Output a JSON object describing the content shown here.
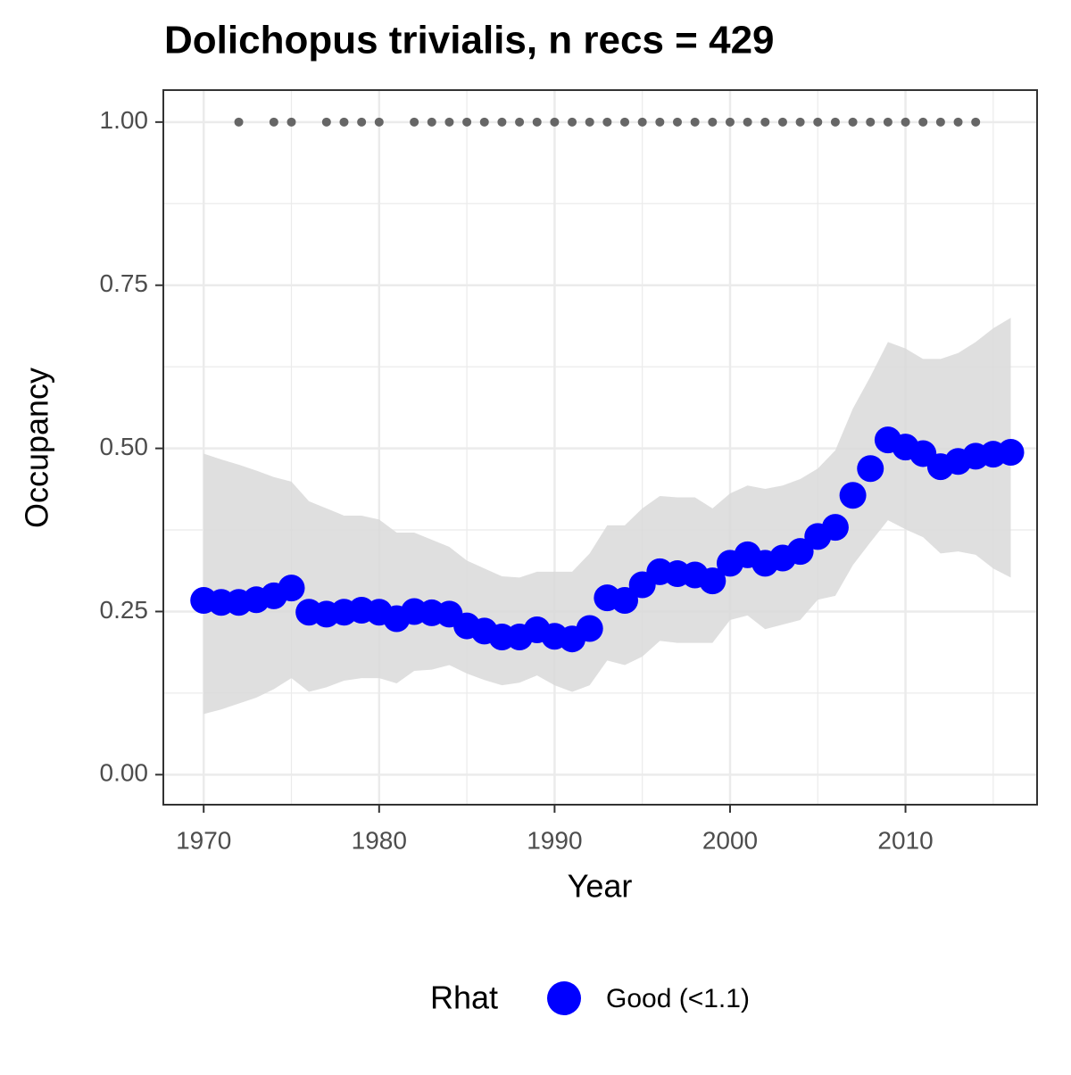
{
  "chart_data": {
    "type": "scatter",
    "title": "Dolichopus trivialis, n recs = 429",
    "x_label": "Year",
    "y_label": "Occupancy",
    "legend_title": "Rhat",
    "legend_position": "bottom",
    "grid": true,
    "xlim": [
      1967.7,
      2017.5
    ],
    "ylim": [
      -0.046,
      1.049
    ],
    "xticks": [
      1970,
      1980,
      1990,
      2000,
      2010
    ],
    "yticks": [
      {
        "value": 0,
        "label": "0.00"
      },
      {
        "value": 0.25,
        "label": "0.25"
      },
      {
        "value": 0.5,
        "label": "0.50"
      },
      {
        "value": 0.75,
        "label": "0.75"
      },
      {
        "value": 1,
        "label": "1.00"
      }
    ],
    "x_minor_ticks": [
      1975,
      1985,
      1995,
      2005,
      2015
    ],
    "y_minor_ticks": [
      0.125,
      0.375,
      0.625,
      0.875
    ],
    "series": [
      {
        "name": "Good (<1.1)",
        "color": "#0000ff",
        "band_color": "#d9d9d9",
        "x": [
          1970,
          1971,
          1972,
          1973,
          1974,
          1975,
          1976,
          1977,
          1978,
          1979,
          1980,
          1981,
          1982,
          1983,
          1984,
          1985,
          1986,
          1987,
          1988,
          1989,
          1990,
          1991,
          1992,
          1993,
          1994,
          1995,
          1996,
          1997,
          1998,
          1999,
          2000,
          2001,
          2002,
          2003,
          2004,
          2005,
          2006,
          2007,
          2008,
          2009,
          2010,
          2011,
          2012,
          2013,
          2014,
          2015,
          2016
        ],
        "values": [
          0.267,
          0.264,
          0.264,
          0.268,
          0.274,
          0.286,
          0.249,
          0.246,
          0.249,
          0.252,
          0.249,
          0.239,
          0.25,
          0.248,
          0.246,
          0.228,
          0.22,
          0.211,
          0.211,
          0.222,
          0.212,
          0.208,
          0.224,
          0.271,
          0.267,
          0.291,
          0.311,
          0.308,
          0.306,
          0.297,
          0.324,
          0.337,
          0.324,
          0.332,
          0.342,
          0.365,
          0.379,
          0.428,
          0.469,
          0.513,
          0.502,
          0.492,
          0.472,
          0.48,
          0.488,
          0.491,
          0.494
        ],
        "upper": [
          0.492,
          0.483,
          0.475,
          0.466,
          0.456,
          0.449,
          0.419,
          0.408,
          0.397,
          0.397,
          0.391,
          0.371,
          0.371,
          0.36,
          0.349,
          0.328,
          0.316,
          0.304,
          0.302,
          0.311,
          0.311,
          0.311,
          0.339,
          0.382,
          0.382,
          0.408,
          0.427,
          0.425,
          0.425,
          0.408,
          0.431,
          0.443,
          0.438,
          0.443,
          0.453,
          0.469,
          0.497,
          0.561,
          0.61,
          0.663,
          0.653,
          0.637,
          0.637,
          0.646,
          0.663,
          0.684,
          0.7
        ],
        "lower": [
          0.093,
          0.1,
          0.109,
          0.118,
          0.131,
          0.148,
          0.127,
          0.134,
          0.144,
          0.148,
          0.148,
          0.14,
          0.159,
          0.161,
          0.168,
          0.155,
          0.145,
          0.137,
          0.141,
          0.152,
          0.137,
          0.127,
          0.137,
          0.175,
          0.168,
          0.181,
          0.205,
          0.202,
          0.202,
          0.202,
          0.237,
          0.244,
          0.223,
          0.23,
          0.237,
          0.268,
          0.274,
          0.321,
          0.356,
          0.39,
          0.376,
          0.364,
          0.339,
          0.342,
          0.337,
          0.316,
          0.302
        ]
      }
    ],
    "records": {
      "color": "#666666",
      "x": [
        1972,
        1974,
        1975,
        1977,
        1978,
        1979,
        1980,
        1982,
        1983,
        1984,
        1985,
        1986,
        1987,
        1988,
        1989,
        1990,
        1991,
        1992,
        1993,
        1994,
        1995,
        1996,
        1997,
        1998,
        1999,
        2000,
        2001,
        2002,
        2003,
        2004,
        2005,
        2006,
        2007,
        2008,
        2009,
        2010,
        2011,
        2012,
        2013,
        2014
      ],
      "values": [
        1,
        1,
        1,
        1,
        1,
        1,
        1,
        1,
        1,
        1,
        1,
        1,
        1,
        1,
        1,
        1,
        1,
        1,
        1,
        1,
        1,
        1,
        1,
        1,
        1,
        1,
        1,
        1,
        1,
        1,
        1,
        1,
        1,
        1,
        1,
        1,
        1,
        1,
        1,
        1
      ]
    }
  }
}
